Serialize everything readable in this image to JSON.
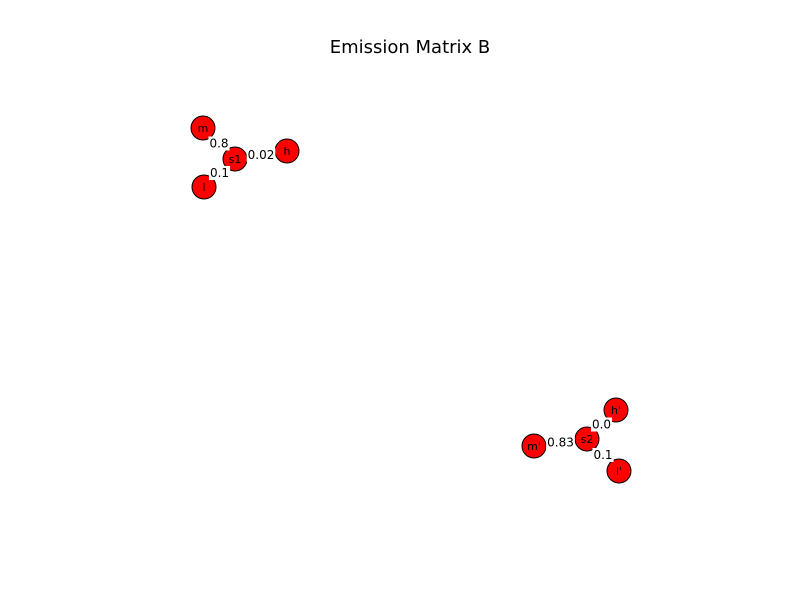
{
  "title": "Emission Matrix B",
  "node_color": "#ff0000",
  "graphs": [
    {
      "center": "s1",
      "nodes": [
        "s1",
        "h",
        "m",
        "l"
      ],
      "edges": [
        {
          "from": "s1",
          "to": "h",
          "label": "0.02"
        },
        {
          "from": "s1",
          "to": "m",
          "label": "0.8"
        },
        {
          "from": "s1",
          "to": "l",
          "label": "0.1"
        }
      ]
    },
    {
      "center": "s2",
      "nodes": [
        "s2",
        "h'",
        "m'",
        "l'"
      ],
      "edges": [
        {
          "from": "s2",
          "to": "h'",
          "label": "0.0"
        },
        {
          "from": "s2",
          "to": "m'",
          "label": "0.83"
        },
        {
          "from": "s2",
          "to": "l'",
          "label": "0.1"
        }
      ]
    }
  ]
}
